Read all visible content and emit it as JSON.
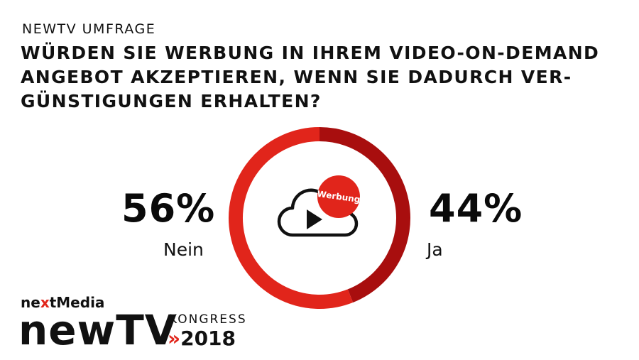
{
  "kicker": "NEWTV UMFRAGE",
  "headline_lines": [
    "WÜRDEN SIE WERBUNG IN IHREM VIDEO-ON-DEMAND",
    "ANGEBOT AKZEPTIEREN, WENN SIE DADURCH VER-",
    "GÜNSTIGUNGEN ERHALTEN?"
  ],
  "chart_data": {
    "type": "pie",
    "donut": true,
    "categories": [
      "Nein",
      "Ja"
    ],
    "values": [
      56,
      44
    ],
    "labels": [
      "56%",
      "44%"
    ],
    "unit": "%",
    "colors": [
      "#e1251b",
      "#a80e0e"
    ],
    "center_icon": "cloud-play-icon",
    "center_badge": "Werbung"
  },
  "logo": {
    "media_prefix": "ne",
    "media_x": "x",
    "media_suffix": "tMedia",
    "brand": "newTV",
    "kongress": "KONGRESS",
    "chevrons": "»",
    "year": "2018"
  }
}
